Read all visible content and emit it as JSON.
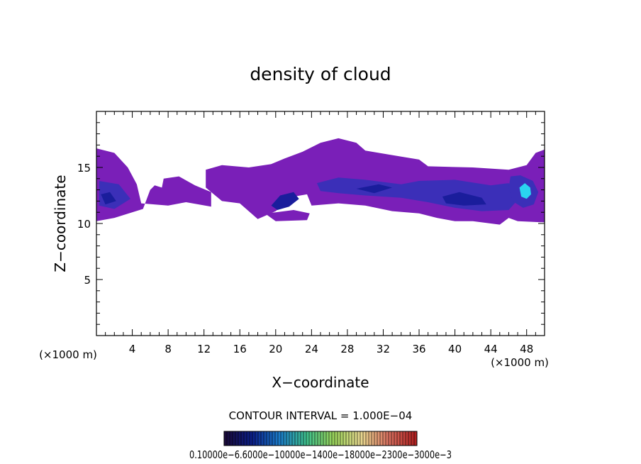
{
  "chart_data": {
    "type": "heatmap",
    "title": "density of cloud",
    "xlabel": "X−coordinate",
    "ylabel": "Z−coordinate",
    "x_unit_left": "(×1000 m)",
    "x_unit_right": "(×1000 m)",
    "xlim": [
      0,
      50
    ],
    "ylim": [
      0,
      20
    ],
    "x_ticks": [
      4,
      8,
      12,
      16,
      20,
      24,
      28,
      32,
      36,
      40,
      44,
      48
    ],
    "y_ticks": [
      5,
      10,
      15
    ],
    "contour_interval_text": "CONTOUR INTERVAL = 1.000E−04",
    "colorbar_labels_text": "0.10000e−6.6000e−10000e−1400e−18000e−2300e−3000e−3",
    "colorbar_colors": [
      "#1a0a3a",
      "#0b1f8a",
      "#1b7cc9",
      "#3fbf8a",
      "#9ad25a",
      "#e8d890",
      "#d87060",
      "#b02020"
    ],
    "fill_colors": {
      "base": "#7a1fb8",
      "mid": "#3b2fb8",
      "dark": "#1a1d9c",
      "core": "#2ad4f0"
    },
    "cloud_regions": [
      {
        "level": "base",
        "polygon": [
          [
            0,
            16.7
          ],
          [
            2,
            16.3
          ],
          [
            3.5,
            15
          ],
          [
            4.5,
            13.5
          ],
          [
            5,
            11.8
          ],
          [
            8,
            11.6
          ],
          [
            10,
            11.9
          ],
          [
            12.8,
            11.5
          ],
          [
            12.8,
            12.8
          ],
          [
            11,
            13.4
          ],
          [
            9.2,
            14.2
          ],
          [
            7.5,
            14
          ],
          [
            7.3,
            13.2
          ],
          [
            6.5,
            13.4
          ],
          [
            6,
            13
          ],
          [
            5.2,
            11.3
          ],
          [
            2,
            10.5
          ],
          [
            0,
            10.2
          ]
        ]
      },
      {
        "level": "base",
        "polygon": [
          [
            12.2,
            14.8
          ],
          [
            14,
            15.2
          ],
          [
            17,
            15
          ],
          [
            19.5,
            15.3
          ],
          [
            21,
            15.8
          ],
          [
            23,
            16.4
          ],
          [
            25,
            17.2
          ],
          [
            27,
            17.6
          ],
          [
            29,
            17.2
          ],
          [
            30,
            16.5
          ],
          [
            33,
            16.1
          ],
          [
            36,
            15.7
          ],
          [
            37,
            15.1
          ],
          [
            42,
            15
          ],
          [
            46,
            14.8
          ],
          [
            48,
            15.2
          ],
          [
            49,
            16.3
          ],
          [
            50,
            16.6
          ],
          [
            50,
            10.1
          ],
          [
            47,
            10.2
          ],
          [
            46,
            10.5
          ],
          [
            45,
            9.9
          ],
          [
            42,
            10.2
          ],
          [
            40,
            10.2
          ],
          [
            38,
            10.5
          ],
          [
            36,
            10.9
          ],
          [
            33,
            11.1
          ],
          [
            30,
            11.6
          ],
          [
            27,
            11.8
          ],
          [
            24,
            11.6
          ],
          [
            23.5,
            12.6
          ],
          [
            22,
            12.4
          ],
          [
            20,
            11.1
          ],
          [
            18,
            10.4
          ],
          [
            16,
            11.8
          ],
          [
            14,
            12
          ],
          [
            12.2,
            13.2
          ]
        ]
      },
      {
        "level": "base",
        "polygon": [
          [
            18.8,
            10.9
          ],
          [
            20,
            10.2
          ],
          [
            23.5,
            10.3
          ],
          [
            23.8,
            10.9
          ],
          [
            22,
            11.2
          ],
          [
            20,
            11
          ]
        ]
      },
      {
        "level": "mid",
        "polygon": [
          [
            0.3,
            13.8
          ],
          [
            2.5,
            13.5
          ],
          [
            3.8,
            12.2
          ],
          [
            2,
            11.3
          ],
          [
            0.3,
            11.6
          ]
        ]
      },
      {
        "level": "mid",
        "polygon": [
          [
            24.6,
            13.6
          ],
          [
            27,
            14.1
          ],
          [
            30,
            13.9
          ],
          [
            34,
            13.5
          ],
          [
            36,
            13.8
          ],
          [
            40,
            13.9
          ],
          [
            44,
            13.4
          ],
          [
            46,
            13.6
          ],
          [
            47,
            12.1
          ],
          [
            46,
            11.2
          ],
          [
            43,
            11.1
          ],
          [
            40,
            11.4
          ],
          [
            37,
            11.9
          ],
          [
            34,
            12.3
          ],
          [
            30,
            12.5
          ],
          [
            27,
            12.7
          ],
          [
            25,
            12.9
          ]
        ]
      },
      {
        "level": "dark",
        "polygon": [
          [
            0.5,
            12.6
          ],
          [
            1.5,
            12.8
          ],
          [
            2.2,
            12
          ],
          [
            1,
            11.7
          ]
        ]
      },
      {
        "level": "dark",
        "polygon": [
          [
            38.6,
            12.4
          ],
          [
            40.5,
            12.8
          ],
          [
            43,
            12.3
          ],
          [
            43.5,
            11.7
          ],
          [
            41,
            11.6
          ],
          [
            39,
            11.8
          ]
        ]
      },
      {
        "level": "dark",
        "polygon": [
          [
            19.5,
            11.6
          ],
          [
            20.5,
            12.5
          ],
          [
            22,
            12.8
          ],
          [
            22.6,
            12.2
          ],
          [
            21.5,
            11.5
          ],
          [
            20.2,
            11.2
          ]
        ]
      },
      {
        "level": "dark",
        "polygon": [
          [
            29,
            13.1
          ],
          [
            31.5,
            13.5
          ],
          [
            33,
            13.2
          ],
          [
            31,
            12.7
          ]
        ]
      },
      {
        "level": "mid",
        "polygon": [
          [
            46.2,
            14.2
          ],
          [
            47.3,
            14.3
          ],
          [
            48.7,
            13.8
          ],
          [
            49.3,
            12.8
          ],
          [
            48.8,
            11.7
          ],
          [
            47.6,
            11.4
          ],
          [
            46.4,
            12
          ],
          [
            46,
            13.2
          ]
        ]
      },
      {
        "level": "core",
        "polygon": [
          [
            47.2,
            13.2
          ],
          [
            47.8,
            13.6
          ],
          [
            48.4,
            13.2
          ],
          [
            48.5,
            12.6
          ],
          [
            48,
            12.2
          ],
          [
            47.4,
            12.4
          ]
        ]
      }
    ]
  }
}
